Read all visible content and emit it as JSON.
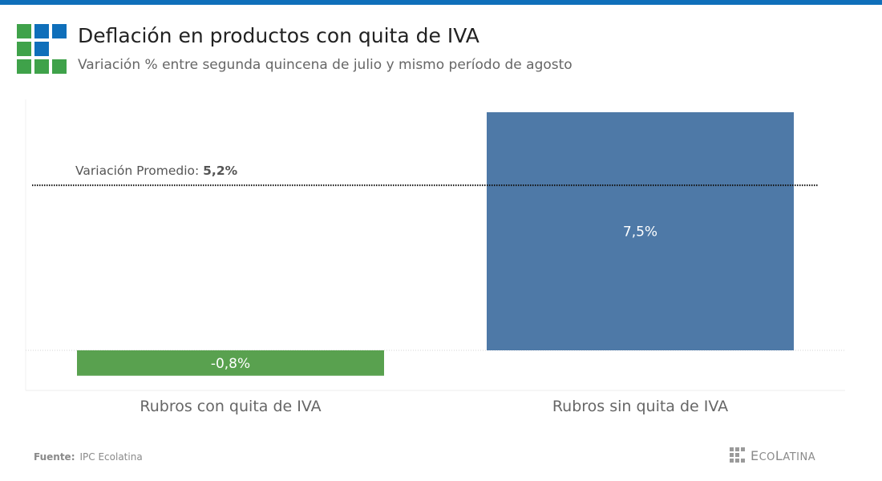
{
  "header": {
    "title": "Deflación en productos con quita de IVA",
    "subtitle": "Variación % entre segunda quincena de julio y mismo período de agosto"
  },
  "chart_data": {
    "type": "bar",
    "categories": [
      "Rubros con quita de IVA",
      "Rubros sin quita de IVA"
    ],
    "values": [
      -0.8,
      7.5
    ],
    "value_labels": [
      "-0,8%",
      "7,5%"
    ],
    "colors": [
      "#59a14f",
      "#4e79a7"
    ],
    "ylim": [
      -1.0,
      7.5
    ],
    "reference_line": {
      "value": 5.2,
      "label_prefix": "Variación Promedio: ",
      "label_value": "5,2%"
    },
    "grid": false
  },
  "footer": {
    "source_label": "Fuente:",
    "source_value": "IPC Ecolatina",
    "brand_initial_1": "E",
    "brand_mid": "CO",
    "brand_initial_2": "L",
    "brand_end": "ATINA"
  },
  "colors": {
    "topbar": "#0f6fba",
    "logo_blue": "#0f6fba",
    "logo_green": "#3fa24a"
  }
}
